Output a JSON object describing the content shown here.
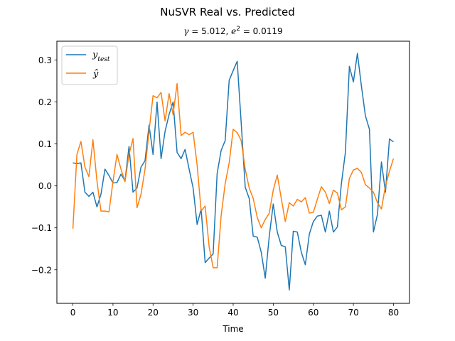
{
  "chart_data": {
    "type": "line",
    "title": "NuSVR Real vs. Predicted",
    "subtitle": "γ = 5.012, e² = 0.0119",
    "xlabel": "Time",
    "ylabel": "",
    "xlim": [
      -4,
      84
    ],
    "ylim": [
      -0.28,
      0.345
    ],
    "xticks": [
      "0",
      "10",
      "20",
      "30",
      "40",
      "50",
      "60",
      "70",
      "80"
    ],
    "yticks": [
      "−0.2",
      "−0.1",
      "0.0",
      "0.1",
      "0.2",
      "0.3"
    ],
    "grid": false,
    "legend_position": "top-left",
    "series": [
      {
        "name": "y_test",
        "label_main": "y",
        "label_sub": "test",
        "color": "#1f77b4",
        "values": [
          0.055,
          0.053,
          0.055,
          -0.015,
          -0.025,
          -0.015,
          -0.05,
          -0.02,
          0.04,
          0.025,
          0.007,
          0.008,
          0.028,
          0.012,
          0.094,
          -0.015,
          -0.005,
          0.045,
          0.06,
          0.145,
          0.075,
          0.2,
          0.065,
          0.13,
          0.17,
          0.2,
          0.08,
          0.065,
          0.087,
          0.04,
          -0.005,
          -0.092,
          -0.055,
          -0.183,
          -0.172,
          -0.162,
          0.03,
          0.085,
          0.108,
          0.252,
          0.275,
          0.297,
          0.15,
          -0.003,
          -0.03,
          -0.12,
          -0.122,
          -0.158,
          -0.22,
          -0.12,
          -0.043,
          -0.11,
          -0.142,
          -0.145,
          -0.248,
          -0.108,
          -0.11,
          -0.158,
          -0.188,
          -0.115,
          -0.085,
          -0.072,
          -0.07,
          -0.11,
          -0.06,
          -0.11,
          -0.098,
          0.005,
          0.08,
          0.285,
          0.248,
          0.316,
          0.238,
          0.167,
          0.135,
          -0.11,
          -0.068,
          0.057,
          -0.015,
          0.112,
          0.105
        ]
      },
      {
        "name": "ŷ",
        "label_main": "ŷ",
        "label_sub": "",
        "color": "#ff7f0e",
        "values": [
          -0.102,
          0.075,
          0.106,
          0.045,
          0.022,
          0.11,
          0.012,
          -0.06,
          -0.06,
          -0.062,
          0.01,
          0.075,
          0.04,
          0.01,
          0.075,
          0.113,
          -0.052,
          -0.02,
          0.04,
          0.13,
          0.215,
          0.21,
          0.223,
          0.155,
          0.22,
          0.17,
          0.244,
          0.12,
          0.128,
          0.122,
          0.128,
          0.05,
          -0.06,
          -0.048,
          -0.145,
          -0.195,
          -0.195,
          -0.07,
          0.005,
          0.055,
          0.135,
          0.127,
          0.108,
          0.04,
          -0.005,
          -0.03,
          -0.075,
          -0.1,
          -0.08,
          -0.065,
          -0.01,
          0.026,
          -0.03,
          -0.085,
          -0.04,
          -0.048,
          -0.032,
          -0.038,
          -0.028,
          -0.065,
          -0.063,
          -0.032,
          -0.002,
          -0.015,
          -0.042,
          -0.01,
          -0.017,
          -0.057,
          -0.05,
          0.018,
          0.038,
          0.042,
          0.032,
          0.003,
          -0.005,
          -0.015,
          -0.04,
          -0.055,
          0.0,
          0.035,
          0.065
        ]
      }
    ]
  }
}
